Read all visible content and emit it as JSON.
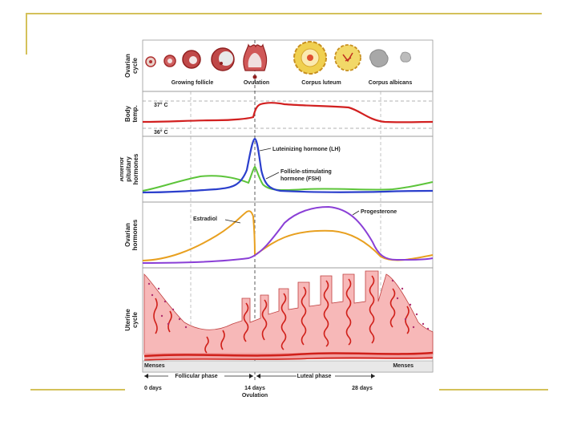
{
  "colors": {
    "accent_line": "#d4c15a",
    "body_temp": "#d22020",
    "lh": "#2b3fcc",
    "fsh": "#5cc43a",
    "estradiol": "#e8a020",
    "progesterone": "#8a3fd6",
    "uterine_fill": "#f7b8b8",
    "uterine_vessel": "#d0201a",
    "corpus_luteum": "#f0d050",
    "corpus_albicans": "#a8a8a8"
  },
  "panels": {
    "ovarian_cycle": {
      "title": "Ovarian cycle",
      "stages": [
        "Growing follicle",
        "Ovulation",
        "Corpus luteum",
        "Corpus albicans"
      ]
    },
    "body_temp": {
      "title": "Body temp.",
      "marks": [
        "37° C",
        "36° C"
      ]
    },
    "pituitary": {
      "title": "Anterior pituitary hormones",
      "lh_label": "Luteinizing hormone (LH)",
      "fsh_label_1": "Follicle-stimulating",
      "fsh_label_2": "hormone (FSH)"
    },
    "ovarian_hormones": {
      "title": "Ovarian hormones",
      "estradiol_label": "Estradiol",
      "progesterone_label": "Progesterone"
    },
    "uterine": {
      "title": "Uterine cycle",
      "menses_left": "Menses",
      "menses_right": "Menses",
      "follicular_phase": "Follicular phase",
      "luteal_phase": "Luteal phase"
    }
  },
  "timeline": {
    "day0": "0 days",
    "day14": "14 days",
    "day14_sub": "Ovulation",
    "day28": "28 days"
  }
}
